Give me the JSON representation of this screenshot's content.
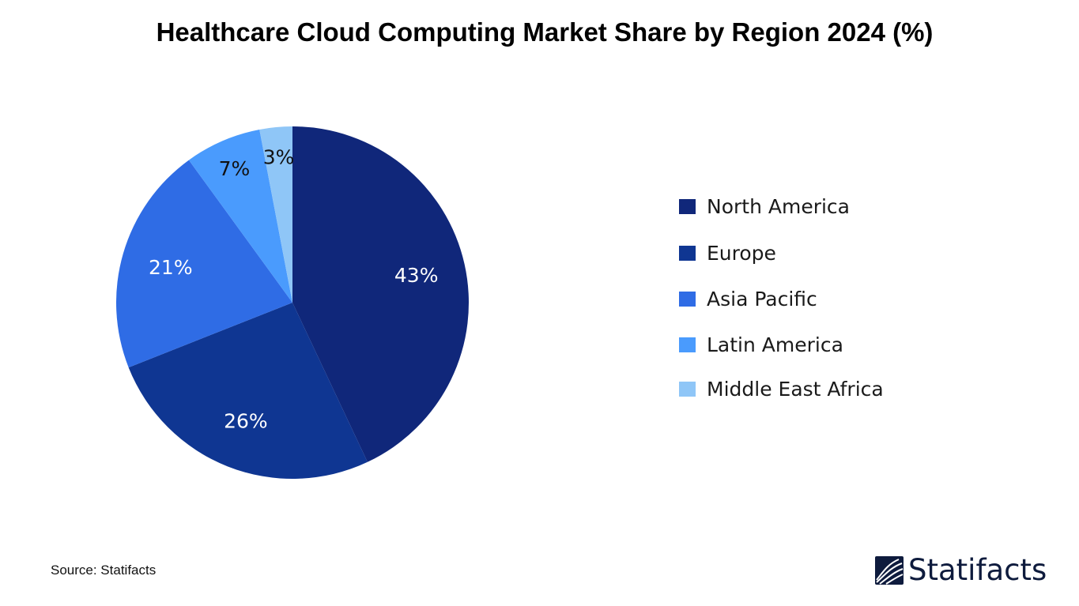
{
  "chart_data": {
    "type": "pie",
    "title": "Healthcare Cloud Computing Market Share by Region 2024 (%)",
    "categories": [
      "North America",
      "Europe",
      "Asia Pacific",
      "Latin America",
      "Middle East Africa"
    ],
    "values": [
      43,
      26,
      21,
      7,
      3
    ],
    "labels": [
      "43%",
      "26%",
      "21%",
      "7%",
      "3%"
    ],
    "colors": [
      "#10277a",
      "#0f3692",
      "#2f6ce5",
      "#4a9bfd",
      "#8fc6f7"
    ],
    "label_colors": [
      "#ffffff",
      "#ffffff",
      "#ffffff",
      "#111111",
      "#111111"
    ],
    "start": "top, clockwise",
    "legend_position": "right"
  },
  "source": "Source: Statifacts",
  "logo": {
    "text": "Statifacts"
  }
}
